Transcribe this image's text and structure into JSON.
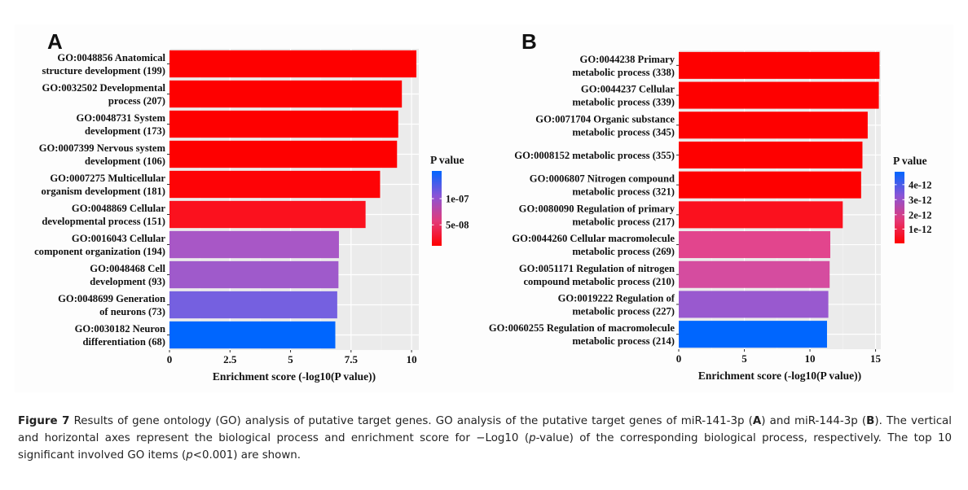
{
  "chart_data": [
    {
      "type": "bar",
      "orientation": "horizontal",
      "panel": "A",
      "categories": [
        "GO:0048856 Anatomical structure development (199)",
        "GO:0032502 Developmental process (207)",
        "GO:0048731 System development (173)",
        "GO:0007399 Nervous system development (106)",
        "GO:0007275 Multicellular organism development (181)",
        "GO:0048869 Cellular developmental process (151)",
        "GO:0016043 Cellular component organization (194)",
        "GO:0048468 Cell development (93)",
        "GO:0048699 Generation of neurons (73)",
        "GO:0030182 Neuron differentiation (68)"
      ],
      "label_lines": [
        [
          "GO:0048856 Anatomical",
          "structure development (199)"
        ],
        [
          "GO:0032502 Developmental",
          "process (207)"
        ],
        [
          "GO:0048731 System",
          "development (173)"
        ],
        [
          "GO:0007399 Nervous system",
          "development (106)"
        ],
        [
          "GO:0007275 Multicellular",
          "organism development (181)"
        ],
        [
          "GO:0048869 Cellular",
          "developmental process (151)"
        ],
        [
          "GO:0016043 Cellular",
          "component organization (194)"
        ],
        [
          "GO:0048468 Cell",
          "development (93)"
        ],
        [
          "GO:0048699 Generation",
          "of neurons (73)"
        ],
        [
          "GO:0030182 Neuron",
          "differentiation (68)"
        ]
      ],
      "values": [
        10.2,
        9.6,
        9.45,
        9.4,
        8.7,
        8.1,
        7.0,
        6.98,
        6.93,
        6.85
      ],
      "bar_colors": [
        "#fe0000",
        "#fe0000",
        "#fe0000",
        "#fe0000",
        "#fe0306",
        "#fb111e",
        "#a857c6",
        "#9f5acb",
        "#7560e0",
        "#0066fe"
      ],
      "xlabel": "Enrichment score (-log10(P value))",
      "ylabel": "",
      "xlim": [
        0,
        10.3
      ],
      "xticks": [
        0,
        2.5,
        5,
        7.5,
        10
      ],
      "xtick_labels": [
        "0",
        "2.5",
        "5",
        "7.5",
        "10"
      ],
      "grid": true,
      "legend": {
        "title": "P value",
        "placement": "right",
        "gradient": [
          "#0066ff",
          "#8a55d6",
          "#e23a7a",
          "#ff0000"
        ],
        "tick_labels": [
          "1e-07",
          "5e-08"
        ],
        "tick_fraction_from_top": [
          0.37,
          0.72
        ]
      }
    },
    {
      "type": "bar",
      "orientation": "horizontal",
      "panel": "B",
      "categories": [
        "GO:0044238 Primary metabolic process (338)",
        "GO:0044237 Cellular metabolic process (339)",
        "GO:0071704 Organic substance metabolic process (345)",
        "GO:0008152 metabolic process (355)",
        "GO:0006807 Nitrogen compound metabolic process (321)",
        "GO:0080090 Regulation of primary metabolic process (217)",
        "GO:0044260 Cellular macromolecule metabolic process (269)",
        "GO:0051171 Regulation of nitrogen compound metabolic process (210)",
        "GO:0019222 Regulation of metabolic process (227)",
        "GO:0060255 Regulation of macromolecule metabolic process (214)"
      ],
      "label_lines": [
        [
          "GO:0044238 Primary",
          "metabolic process (338)"
        ],
        [
          "GO:0044237 Cellular",
          "metabolic process (339)"
        ],
        [
          "GO:0071704 Organic substance",
          "metabolic process (345)"
        ],
        [
          "GO:0008152 metabolic process (355)"
        ],
        [
          "GO:0006807 Nitrogen compound",
          "metabolic process (321)"
        ],
        [
          "GO:0080090 Regulation of primary",
          "metabolic process (217)"
        ],
        [
          "GO:0044260 Cellular macromolecule",
          "metabolic process (269)"
        ],
        [
          "GO:0051171 Regulation of nitrogen",
          "compound metabolic process (210)"
        ],
        [
          "GO:0019222 Regulation of",
          "metabolic process (227)"
        ],
        [
          "GO:0060255 Regulation of macromolecule",
          "metabolic process (214)"
        ]
      ],
      "values": [
        15.3,
        15.25,
        14.4,
        14.0,
        13.9,
        12.5,
        11.55,
        11.5,
        11.4,
        11.3
      ],
      "bar_colors": [
        "#fe0000",
        "#fe0000",
        "#fe0000",
        "#fe0000",
        "#fe0000",
        "#fb111e",
        "#e2458d",
        "#d54c9f",
        "#9959cf",
        "#0066fe"
      ],
      "xlabel": "Enrichment score (-log10(P value))",
      "ylabel": "",
      "xlim": [
        0,
        15.4
      ],
      "xticks": [
        0,
        5,
        10,
        15
      ],
      "xtick_labels": [
        "0",
        "5",
        "10",
        "15"
      ],
      "grid": true,
      "legend": {
        "title": "P value",
        "placement": "right",
        "gradient": [
          "#0066ff",
          "#8a55d6",
          "#e23a7a",
          "#ff0000"
        ],
        "tick_labels": [
          "4e-12",
          "3e-12",
          "2e-12",
          "1e-12"
        ],
        "tick_fraction_from_top": [
          0.18,
          0.39,
          0.6,
          0.8
        ]
      }
    }
  ],
  "panels": {
    "a_letter": "A",
    "b_letter": "B"
  },
  "caption": {
    "figure_label": "Figure 7",
    "text_1": " Results of gene ontology (GO) analysis of putative target genes. GO analysis of the putative target genes of miR-141-3p (",
    "a_ref": "A",
    "text_2": ") and miR-144-3p (",
    "b_ref": "B",
    "text_3": "). The vertical and horizontal axes represent the biological process and enrichment score for −Log10 (",
    "p1": "p",
    "text_4": "-value) of the corresponding biological process, respectively. The top 10 significant involved GO items (",
    "p2": "p",
    "text_5": "<0.001) are shown."
  }
}
